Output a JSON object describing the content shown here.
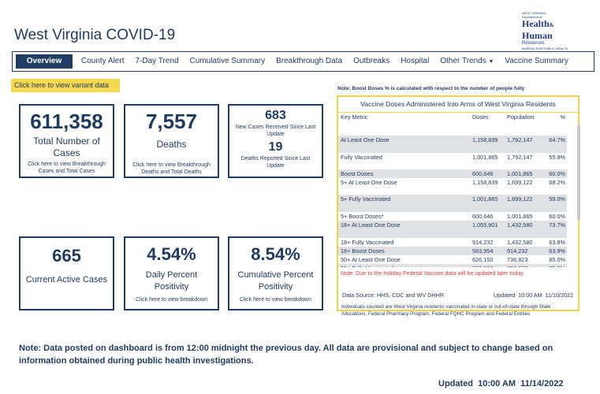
{
  "header": {
    "title": "West Virginia COVID-19",
    "logo_text": [
      "WEST VIRGINIA",
      "Department of",
      "Health",
      "&",
      "Human",
      "Resources",
      "BUREAU FOR PUBLIC HEALTH"
    ]
  },
  "nav": {
    "tabs": [
      {
        "label": "Overview",
        "active": true
      },
      {
        "label": "County Alert"
      },
      {
        "label": "7-Day Trend"
      },
      {
        "label": "Cumulative Summary"
      },
      {
        "label": "Breakthrough Data"
      },
      {
        "label": "Outbreaks"
      },
      {
        "label": "Hospital"
      },
      {
        "label": "Other Trends",
        "dropdown": true
      },
      {
        "label": "Vaccine Summary"
      }
    ]
  },
  "variant_button": "Click here to view variant data",
  "cards": {
    "total_cases": {
      "value": "611,358",
      "label": "Total Number of Cases",
      "link": "Click here to view Breakthrough Cases and Total Cases"
    },
    "deaths": {
      "value": "7,557",
      "label": "Deaths",
      "link": "Click here to view Breakthrough Deaths and Total Deaths"
    },
    "new_cases": {
      "value": "683",
      "label": "New Cases Received Since Last Update"
    },
    "new_deaths": {
      "value": "19",
      "label": "Deaths Reported Since Last Update"
    },
    "active": {
      "value": "665",
      "label": "Current Active Cases"
    },
    "daily": {
      "value": "4.54%",
      "label": "Daily Percent Positivity",
      "link": "Click here to view breakdown"
    },
    "cumulative": {
      "value": "8.54%",
      "label": "Cumulative Percent Positivity",
      "link": "Click here to view breakdown"
    }
  },
  "vaccine": {
    "boost_note": "Note: Boost Doses % is calculated with respect to the number of people fully",
    "title": "Vaccine Doses Administered Into Arms of West Virginia Residents",
    "columns": [
      "Key Metric",
      "Doses",
      "Population",
      "%"
    ],
    "rows": [
      [
        "At Least One Dose",
        "1,158,839",
        "1,792,147",
        "64.7%"
      ],
      [
        "Fully Vaccinated",
        "1,001,865",
        "1,792,147",
        "55.9%"
      ],
      [
        "Boost Doses",
        "600,646",
        "1,001,865",
        "60.0%"
      ],
      [
        "5+ At Least One Dose",
        "1,158,839",
        "1,699,122",
        "68.2%"
      ],
      [
        "5+ Fully Vaccinated",
        "1,001,865",
        "1,699,122",
        "59.0%"
      ],
      [
        "5+ Boost Doses*",
        "600,646",
        "1,001,865",
        "60.0%"
      ],
      [
        "18+ At Least One Dose",
        "1,055,901",
        "1,432,580",
        "73.7%"
      ],
      [
        "18+ Fully Vaccinated",
        "914,232",
        "1,432,580",
        "63.8%"
      ],
      [
        "18+ Boost Doses",
        "583,954",
        "914,232",
        "63.9%"
      ],
      [
        "50+ At Least One Dose",
        "626,150",
        "736,823",
        "85.0%"
      ],
      [
        "50+ Fully Vaccinated",
        "558,528",
        "736,823",
        "75.8%"
      ]
    ],
    "red_note": "Note: Due to the holiday Federal Vaccine data will be updated later today",
    "source": "Data Source: HHS, CDC and WV DHHR",
    "updated": "Updated  10:00 AM  11/10/2022",
    "individuals": "Individuals counted are West Virginia residents vaccinated in-state or out-of-state through State Allocations, Federal Pharmacy Program, Federal FQHC Program and Federal Entities"
  },
  "footer": {
    "note": "Note: Data posted on dashboard is from 12:00 midnight the previous day. All data are provisional and subject to change based on information obtained during public health investigations.",
    "updated": "Updated  10:00 AM  11/14/2022"
  }
}
